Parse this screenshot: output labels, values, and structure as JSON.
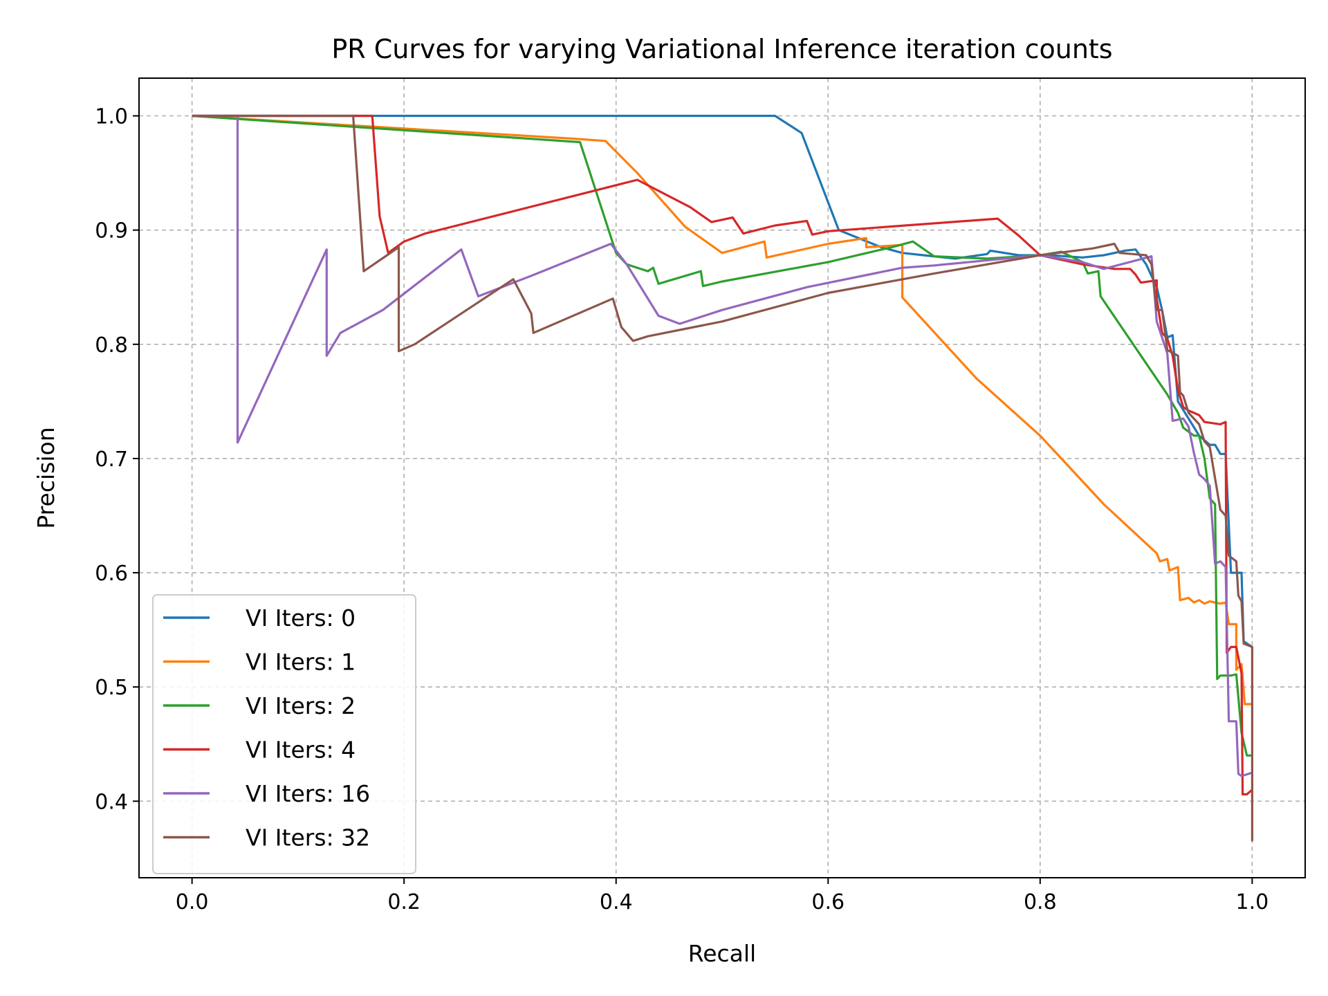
{
  "chart_data": {
    "type": "line",
    "title": "PR Curves for varying Variational Inference iteration counts",
    "xlabel": "Recall",
    "ylabel": "Precision",
    "xlim": [
      -0.05,
      1.05
    ],
    "ylim": [
      0.333,
      1.033
    ],
    "xticks": [
      "0.0",
      "0.2",
      "0.4",
      "0.6",
      "0.8",
      "1.0"
    ],
    "yticks": [
      "0.4",
      "0.5",
      "0.6",
      "0.7",
      "0.8",
      "0.9",
      "1.0"
    ],
    "grid": true,
    "legend_position": "lower-left",
    "series": [
      {
        "name": "VI Iters: 0",
        "color": "#1f77b4",
        "points": [
          [
            0,
            1.0
          ],
          [
            0.55,
            1.0
          ],
          [
            0.575,
            0.985
          ],
          [
            0.61,
            0.9
          ],
          [
            0.65,
            0.885
          ],
          [
            0.67,
            0.88
          ],
          [
            0.69,
            0.878
          ],
          [
            0.72,
            0.875
          ],
          [
            0.75,
            0.879
          ],
          [
            0.753,
            0.882
          ],
          [
            0.78,
            0.878
          ],
          [
            0.81,
            0.878
          ],
          [
            0.84,
            0.876
          ],
          [
            0.86,
            0.878
          ],
          [
            0.88,
            0.882
          ],
          [
            0.89,
            0.883
          ],
          [
            0.9,
            0.87
          ],
          [
            0.91,
            0.85
          ],
          [
            0.915,
            0.83
          ],
          [
            0.92,
            0.806
          ],
          [
            0.925,
            0.808
          ],
          [
            0.93,
            0.75
          ],
          [
            0.94,
            0.735
          ],
          [
            0.95,
            0.72
          ],
          [
            0.96,
            0.712
          ],
          [
            0.965,
            0.712
          ],
          [
            0.97,
            0.704
          ],
          [
            0.975,
            0.704
          ],
          [
            0.98,
            0.6
          ],
          [
            0.99,
            0.6
          ],
          [
            0.992,
            0.54
          ],
          [
            1.0,
            0.535
          ]
        ]
      },
      {
        "name": "VI Iters: 1",
        "color": "#ff7f0e",
        "points": [
          [
            0,
            1.0
          ],
          [
            0.36,
            0.98
          ],
          [
            0.39,
            0.978
          ],
          [
            0.42,
            0.95
          ],
          [
            0.465,
            0.903
          ],
          [
            0.5,
            0.88
          ],
          [
            0.54,
            0.89
          ],
          [
            0.542,
            0.876
          ],
          [
            0.6,
            0.888
          ],
          [
            0.636,
            0.893
          ],
          [
            0.636,
            0.885
          ],
          [
            0.67,
            0.887
          ],
          [
            0.67,
            0.841
          ],
          [
            0.74,
            0.77
          ],
          [
            0.8,
            0.72
          ],
          [
            0.86,
            0.66
          ],
          [
            0.91,
            0.617
          ],
          [
            0.913,
            0.61
          ],
          [
            0.92,
            0.612
          ],
          [
            0.922,
            0.602
          ],
          [
            0.93,
            0.605
          ],
          [
            0.932,
            0.576
          ],
          [
            0.94,
            0.578
          ],
          [
            0.945,
            0.574
          ],
          [
            0.95,
            0.576
          ],
          [
            0.955,
            0.573
          ],
          [
            0.96,
            0.575
          ],
          [
            0.97,
            0.573
          ],
          [
            0.975,
            0.574
          ],
          [
            0.978,
            0.555
          ],
          [
            0.985,
            0.555
          ],
          [
            0.985,
            0.515
          ],
          [
            0.99,
            0.52
          ],
          [
            0.993,
            0.485
          ],
          [
            1.0,
            0.485
          ]
        ]
      },
      {
        "name": "VI Iters: 2",
        "color": "#2ca02c",
        "points": [
          [
            0,
            1.0
          ],
          [
            0.366,
            0.977
          ],
          [
            0.4,
            0.88
          ],
          [
            0.41,
            0.87
          ],
          [
            0.43,
            0.864
          ],
          [
            0.435,
            0.867
          ],
          [
            0.44,
            0.853
          ],
          [
            0.48,
            0.864
          ],
          [
            0.482,
            0.851
          ],
          [
            0.5,
            0.855
          ],
          [
            0.6,
            0.872
          ],
          [
            0.66,
            0.885
          ],
          [
            0.68,
            0.89
          ],
          [
            0.7,
            0.877
          ],
          [
            0.75,
            0.875
          ],
          [
            0.8,
            0.878
          ],
          [
            0.82,
            0.881
          ],
          [
            0.84,
            0.872
          ],
          [
            0.845,
            0.862
          ],
          [
            0.855,
            0.864
          ],
          [
            0.857,
            0.842
          ],
          [
            0.92,
            0.756
          ],
          [
            0.93,
            0.74
          ],
          [
            0.935,
            0.727
          ],
          [
            0.945,
            0.72
          ],
          [
            0.95,
            0.72
          ],
          [
            0.955,
            0.7
          ],
          [
            0.96,
            0.665
          ],
          [
            0.965,
            0.66
          ],
          [
            0.967,
            0.507
          ],
          [
            0.97,
            0.51
          ],
          [
            0.98,
            0.51
          ],
          [
            0.985,
            0.511
          ],
          [
            0.99,
            0.46
          ],
          [
            0.995,
            0.44
          ],
          [
            1.0,
            0.44
          ]
        ]
      },
      {
        "name": "VI Iters: 4",
        "color": "#d62728",
        "points": [
          [
            0,
            1.0
          ],
          [
            0.17,
            1.0
          ],
          [
            0.177,
            0.912
          ],
          [
            0.185,
            0.88
          ],
          [
            0.2,
            0.89
          ],
          [
            0.22,
            0.897
          ],
          [
            0.42,
            0.944
          ],
          [
            0.47,
            0.92
          ],
          [
            0.49,
            0.907
          ],
          [
            0.51,
            0.911
          ],
          [
            0.52,
            0.897
          ],
          [
            0.55,
            0.904
          ],
          [
            0.58,
            0.908
          ],
          [
            0.585,
            0.896
          ],
          [
            0.6,
            0.899
          ],
          [
            0.76,
            0.91
          ],
          [
            0.78,
            0.895
          ],
          [
            0.8,
            0.878
          ],
          [
            0.84,
            0.87
          ],
          [
            0.87,
            0.866
          ],
          [
            0.885,
            0.866
          ],
          [
            0.89,
            0.861
          ],
          [
            0.895,
            0.854
          ],
          [
            0.91,
            0.856
          ],
          [
            0.91,
            0.84
          ],
          [
            0.915,
            0.81
          ],
          [
            0.92,
            0.805
          ],
          [
            0.925,
            0.79
          ],
          [
            0.93,
            0.76
          ],
          [
            0.935,
            0.745
          ],
          [
            0.94,
            0.742
          ],
          [
            0.945,
            0.74
          ],
          [
            0.95,
            0.738
          ],
          [
            0.955,
            0.732
          ],
          [
            0.97,
            0.73
          ],
          [
            0.975,
            0.732
          ],
          [
            0.976,
            0.53
          ],
          [
            0.98,
            0.535
          ],
          [
            0.985,
            0.535
          ],
          [
            0.99,
            0.512
          ],
          [
            0.991,
            0.406
          ],
          [
            0.995,
            0.406
          ],
          [
            1.0,
            0.41
          ]
        ]
      },
      {
        "name": "VI Iters: 16",
        "color": "#9467bd",
        "points": [
          [
            0,
            1.0
          ],
          [
            0.043,
            1.0
          ],
          [
            0.043,
            0.714
          ],
          [
            0.127,
            0.883
          ],
          [
            0.127,
            0.79
          ],
          [
            0.14,
            0.81
          ],
          [
            0.18,
            0.83
          ],
          [
            0.254,
            0.883
          ],
          [
            0.27,
            0.842
          ],
          [
            0.32,
            0.86
          ],
          [
            0.395,
            0.888
          ],
          [
            0.41,
            0.87
          ],
          [
            0.44,
            0.825
          ],
          [
            0.46,
            0.818
          ],
          [
            0.5,
            0.83
          ],
          [
            0.58,
            0.85
          ],
          [
            0.67,
            0.867
          ],
          [
            0.7,
            0.869
          ],
          [
            0.8,
            0.878
          ],
          [
            0.84,
            0.872
          ],
          [
            0.86,
            0.866
          ],
          [
            0.905,
            0.877
          ],
          [
            0.91,
            0.82
          ],
          [
            0.92,
            0.792
          ],
          [
            0.925,
            0.733
          ],
          [
            0.935,
            0.735
          ],
          [
            0.94,
            0.728
          ],
          [
            0.945,
            0.705
          ],
          [
            0.95,
            0.686
          ],
          [
            0.955,
            0.682
          ],
          [
            0.96,
            0.676
          ],
          [
            0.965,
            0.608
          ],
          [
            0.97,
            0.61
          ],
          [
            0.975,
            0.605
          ],
          [
            0.978,
            0.47
          ],
          [
            0.985,
            0.47
          ],
          [
            0.987,
            0.424
          ],
          [
            0.99,
            0.422
          ],
          [
            1.0,
            0.425
          ]
        ]
      },
      {
        "name": "VI Iters: 32",
        "color": "#8c564b",
        "points": [
          [
            0,
            1.0
          ],
          [
            0.152,
            1.0
          ],
          [
            0.162,
            0.864
          ],
          [
            0.195,
            0.885
          ],
          [
            0.195,
            0.794
          ],
          [
            0.21,
            0.8
          ],
          [
            0.303,
            0.857
          ],
          [
            0.32,
            0.827
          ],
          [
            0.322,
            0.81
          ],
          [
            0.397,
            0.84
          ],
          [
            0.405,
            0.815
          ],
          [
            0.416,
            0.803
          ],
          [
            0.43,
            0.807
          ],
          [
            0.5,
            0.82
          ],
          [
            0.6,
            0.845
          ],
          [
            0.7,
            0.862
          ],
          [
            0.8,
            0.878
          ],
          [
            0.85,
            0.884
          ],
          [
            0.87,
            0.888
          ],
          [
            0.875,
            0.88
          ],
          [
            0.9,
            0.878
          ],
          [
            0.905,
            0.87
          ],
          [
            0.91,
            0.83
          ],
          [
            0.915,
            0.83
          ],
          [
            0.92,
            0.795
          ],
          [
            0.93,
            0.79
          ],
          [
            0.932,
            0.758
          ],
          [
            0.935,
            0.755
          ],
          [
            0.94,
            0.74
          ],
          [
            0.95,
            0.73
          ],
          [
            0.955,
            0.715
          ],
          [
            0.96,
            0.71
          ],
          [
            0.97,
            0.655
          ],
          [
            0.975,
            0.65
          ],
          [
            0.978,
            0.615
          ],
          [
            0.985,
            0.61
          ],
          [
            0.987,
            0.58
          ],
          [
            0.99,
            0.575
          ],
          [
            0.992,
            0.538
          ],
          [
            1.0,
            0.535
          ],
          [
            1.0,
            0.365
          ]
        ]
      }
    ]
  }
}
